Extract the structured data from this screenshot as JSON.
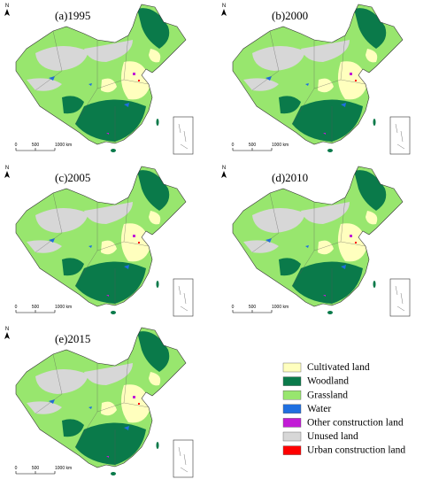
{
  "panels": [
    {
      "label": "(a)1995",
      "north": "N",
      "scale_labels": [
        "0",
        "500",
        "1000 km"
      ]
    },
    {
      "label": "(b)2000",
      "north": "N",
      "scale_labels": [
        "0",
        "500",
        "1000 km"
      ]
    },
    {
      "label": "(c)2005",
      "north": "N",
      "scale_labels": [
        "0",
        "500",
        "1000 km"
      ]
    },
    {
      "label": "(d)2010",
      "north": "N",
      "scale_labels": [
        "0",
        "500",
        "1000 km"
      ]
    },
    {
      "label": "(e)2015",
      "north": "N",
      "scale_labels": [
        "0",
        "500",
        "1000 km"
      ]
    }
  ],
  "legend": {
    "items": [
      {
        "label": "Cultivated land",
        "color": "#ffffbe"
      },
      {
        "label": "Woodland",
        "color": "#0a7a4a"
      },
      {
        "label": "Grassland",
        "color": "#98e66e"
      },
      {
        "label": "Water",
        "color": "#1f6fe0"
      },
      {
        "label": "Other construction land",
        "color": "#c21bd6"
      },
      {
        "label": "Unused land",
        "color": "#d7d7d7"
      },
      {
        "label": "Urban construction land",
        "color": "#ff0000"
      }
    ]
  }
}
